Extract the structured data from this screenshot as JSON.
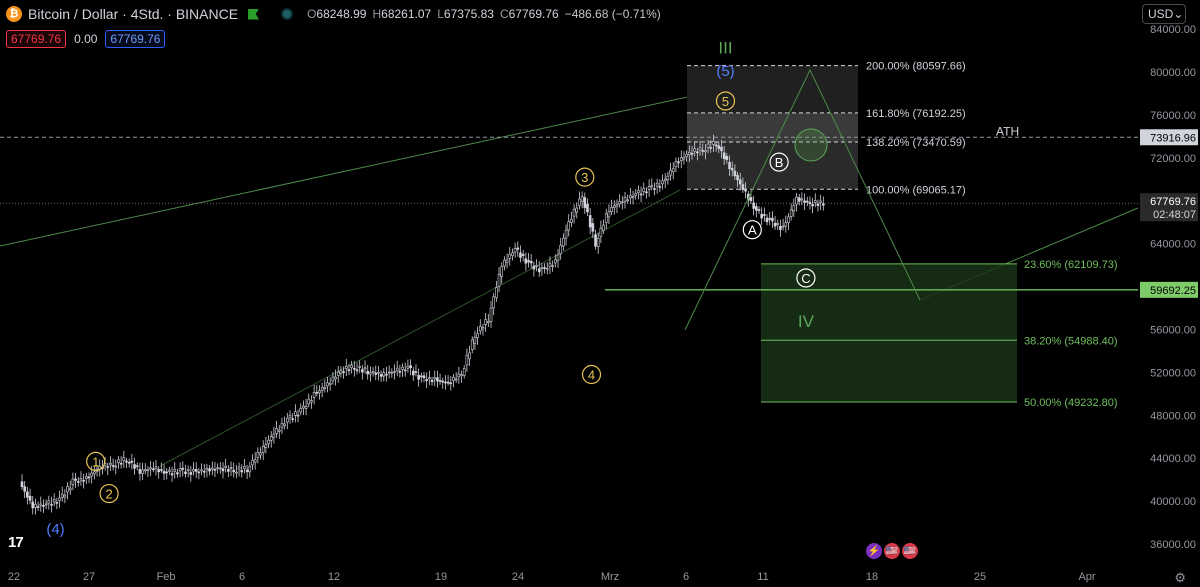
{
  "header": {
    "symbol": "Bitcoin / Dollar · 4Std. · BINANCE",
    "btc_glyph": "₿",
    "open": "68248.99",
    "high": "68261.07",
    "low": "67375.83",
    "close": "67769.76",
    "change": "−486.68 (−0.71%)",
    "open_label": "O",
    "high_label": "H",
    "low_label": "L",
    "close_label": "C"
  },
  "order": {
    "sell": "67769.76",
    "spread": "0.00",
    "buy": "67769.76"
  },
  "currency": {
    "label": "USD",
    "chevron": "⌄"
  },
  "logo": "17",
  "settings_icon": "⚙",
  "event_badges": {
    "lightning": "⚡",
    "flag": "🇺🇸"
  },
  "colors": {
    "background": "#000000",
    "candle": "#d1d4dc",
    "wave_yellow": "#e8c454",
    "wave_green": "#5ea85a",
    "wave_blue": "#4f7dff",
    "fib_zone": "#1a3316"
  },
  "chart_data": {
    "type": "candlestick",
    "price_axis": {
      "ticks": [
        "84000.00",
        "80000.00",
        "76000.00",
        "72000.00",
        "68000.00",
        "64000.00",
        "60000.00",
        "56000.00",
        "52000.00",
        "48000.00",
        "44000.00",
        "40000.00",
        "36000.00"
      ],
      "tick_values": [
        84000,
        80000,
        76000,
        72000,
        68000,
        64000,
        60000,
        56000,
        52000,
        48000,
        44000,
        40000,
        36000
      ],
      "current": "67769.76",
      "countdown": "02:48:07",
      "ath_value": "73916.96",
      "level_value": "59692.25"
    },
    "time_axis": {
      "labels": [
        "22",
        "27",
        "Feb",
        "6",
        "12",
        "19",
        "24",
        "Mrz",
        "6",
        "11",
        "18",
        "25",
        "Apr"
      ]
    },
    "close_series": [
      [
        22,
        41800
      ],
      [
        23,
        39500
      ],
      [
        24,
        39700
      ],
      [
        25,
        40100
      ],
      [
        26,
        41800
      ],
      [
        27,
        42100
      ],
      [
        28,
        43200
      ],
      [
        29,
        43400
      ],
      [
        30,
        43900
      ],
      [
        31,
        42800
      ],
      [
        32,
        43100
      ],
      [
        33,
        42600
      ],
      [
        34,
        42800
      ],
      [
        35,
        42700
      ],
      [
        36,
        42900
      ],
      [
        37,
        43100
      ],
      [
        38,
        42900
      ],
      [
        39,
        43000
      ],
      [
        40,
        44700
      ],
      [
        41,
        46300
      ],
      [
        42,
        47600
      ],
      [
        43,
        48400
      ],
      [
        44,
        49900
      ],
      [
        45,
        50900
      ],
      [
        46,
        52200
      ],
      [
        47,
        52500
      ],
      [
        48,
        52100
      ],
      [
        49,
        51800
      ],
      [
        50,
        52100
      ],
      [
        51,
        52400
      ],
      [
        52,
        51400
      ],
      [
        53,
        51300
      ],
      [
        54,
        51000
      ],
      [
        55,
        51900
      ],
      [
        56,
        55500
      ],
      [
        57,
        57000
      ],
      [
        58,
        62000
      ],
      [
        59,
        63500
      ],
      [
        60,
        62100
      ],
      [
        61,
        61500
      ],
      [
        62,
        62300
      ],
      [
        63,
        66000
      ],
      [
        64,
        68500
      ],
      [
        65,
        64000
      ],
      [
        66,
        67200
      ],
      [
        67,
        68000
      ],
      [
        68,
        68600
      ],
      [
        69,
        69100
      ],
      [
        70,
        69600
      ],
      [
        71,
        71500
      ],
      [
        72,
        72500
      ],
      [
        73,
        72800
      ],
      [
        74,
        73400
      ],
      [
        75,
        71200
      ],
      [
        76,
        69100
      ],
      [
        77,
        67000
      ],
      [
        78,
        66100
      ],
      [
        79,
        65400
      ],
      [
        80,
        68200
      ],
      [
        81,
        67770
      ]
    ],
    "fib_extensions": [
      {
        "label": "200.00% (80597.66)",
        "value": 80597.66
      },
      {
        "label": "161.80% (76192.25)",
        "value": 76192.25
      },
      {
        "label": "138.20% (73470.59)",
        "value": 73470.59
      },
      {
        "label": "100.00% (69065.17)",
        "value": 69065.17
      }
    ],
    "fib_retracements": [
      {
        "label": "23.60% (62109.73)",
        "value": 62109.73
      },
      {
        "label": "38.20% (54988.40)",
        "value": 54988.4
      },
      {
        "label": "50.00% (49232.80)",
        "value": 49232.8
      }
    ],
    "ath_text": "ATH",
    "wave_labels": [
      {
        "text": "1",
        "style": "yellow-circle",
        "x": 27.5,
        "y": 43700
      },
      {
        "text": "2",
        "style": "yellow-circle",
        "x": 28.5,
        "y": 40700
      },
      {
        "text": "3",
        "style": "yellow-circle",
        "x": 64,
        "y": 70200
      },
      {
        "text": "4",
        "style": "yellow-circle",
        "x": 64.5,
        "y": 51800
      },
      {
        "text": "5",
        "style": "yellow-circle",
        "x": 74.5,
        "y": 77300
      },
      {
        "text": "(5)",
        "style": "blue-text",
        "x": 74.5,
        "y": 80200
      },
      {
        "text": "III",
        "style": "green-text",
        "x": 74.5,
        "y": 82300
      },
      {
        "text": "(4)",
        "style": "blue-text",
        "x": 24.5,
        "y": 37500
      },
      {
        "text": "A",
        "style": "white-circle",
        "x": 76.5,
        "y": 65300
      },
      {
        "text": "B",
        "style": "white-circle",
        "x": 78.5,
        "y": 71600
      },
      {
        "text": "C",
        "style": "white-circle",
        "x": 80.5,
        "y": 60800
      },
      {
        "text": "IV",
        "style": "green-text",
        "x": 80.5,
        "y": 56800
      }
    ]
  }
}
